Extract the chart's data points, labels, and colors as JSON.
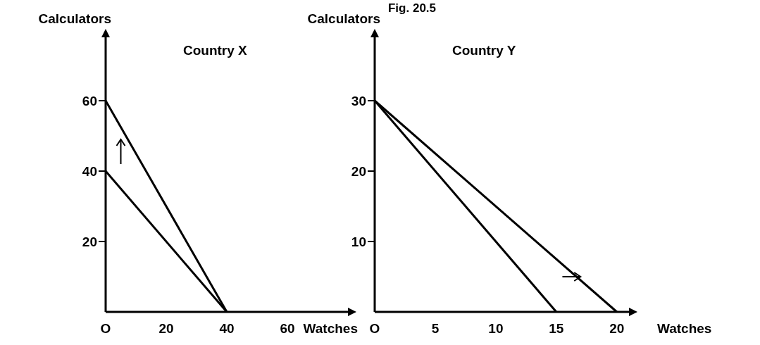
{
  "chart_data": [
    {
      "type": "line",
      "title": "Country X",
      "xlabel": "Watches",
      "ylabel": "Calculators",
      "xlim": [
        0,
        80
      ],
      "ylim": [
        0,
        78
      ],
      "xticks": [
        {
          "value": 0,
          "label": "O"
        },
        20,
        40,
        60
      ],
      "yticks": [
        20,
        40,
        60
      ],
      "grid": false,
      "line_style": "solid",
      "annotations": [
        "Fig. 20.5"
      ],
      "series": [
        {
          "color": "#000000",
          "x": [
            0,
            40
          ],
          "values": [
            40,
            0
          ]
        },
        {
          "color": "#000000",
          "x": [
            0,
            40
          ],
          "values": [
            60,
            0
          ]
        }
      ]
    },
    {
      "type": "line",
      "title": "Country Y",
      "xlabel": "Watches",
      "ylabel": "Calculators",
      "xlim": [
        0,
        21
      ],
      "ylim": [
        0,
        39
      ],
      "xticks": [
        {
          "value": 0,
          "label": "O"
        },
        5,
        10,
        15,
        20
      ],
      "yticks": [
        10,
        20,
        30
      ],
      "grid": false,
      "line_style": "solid",
      "series": [
        {
          "color": "#000000",
          "x": [
            0,
            15
          ],
          "values": [
            30,
            0
          ]
        },
        {
          "color": "#000000",
          "x": [
            0,
            20
          ],
          "values": [
            30,
            0
          ]
        }
      ]
    }
  ]
}
